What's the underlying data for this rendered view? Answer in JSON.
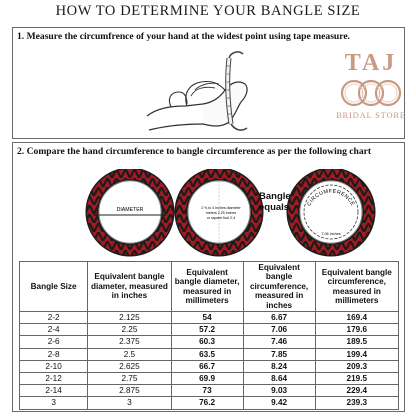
{
  "title": "HOW TO DETERMINE YOUR BANGLE SIZE",
  "step1": {
    "text": "1. Measure the circumfrence of your hand at the widest point using tape measure."
  },
  "logo": {
    "name": "TAJ",
    "tagline": "BRIDAL STORE",
    "color": "#c89a82"
  },
  "step2": {
    "text": "2. Compare the hand circumference to bangle circumference as per the following chart",
    "diameter_label": "DIAMETER",
    "inner_label_line1": "2 ⅝ to 4 inches diameter",
    "inner_label_line2": "meters 2.25 inches",
    "inner_label_line3": "or square foot 2.4",
    "circumference_label": "CIRCUMFERENCE",
    "circ_inner_label": "7.06 inches",
    "equals_line1": "Bangle",
    "equals_line2": "equals",
    "bangle_colors": [
      "#a31a22",
      "#1c1c1c",
      "#c81e28"
    ]
  },
  "table": {
    "headers": [
      "Bangle Size",
      "Equivalent bangle diameter, measured in inches",
      "Equivalent bangle diameter, measured in millimeters",
      "Equivalent bangle circumference, measured in inches",
      "Equivalent bangle circumference, measured in millimeters"
    ],
    "rows": [
      [
        "2-2",
        "2.125",
        "54",
        "6.67",
        "169.4"
      ],
      [
        "2-4",
        "2.25",
        "57.2",
        "7.06",
        "179.6"
      ],
      [
        "2-6",
        "2.375",
        "60.3",
        "7.46",
        "189.5"
      ],
      [
        "2-8",
        "2.5",
        "63.5",
        "7.85",
        "199.4"
      ],
      [
        "2-10",
        "2.625",
        "66.7",
        "8.24",
        "209.3"
      ],
      [
        "2-12",
        "2.75",
        "69.9",
        "8.64",
        "219.5"
      ],
      [
        "2-14",
        "2.875",
        "73",
        "9.03",
        "229.4"
      ],
      [
        "3",
        "3",
        "76.2",
        "9.42",
        "239.3"
      ]
    ]
  }
}
